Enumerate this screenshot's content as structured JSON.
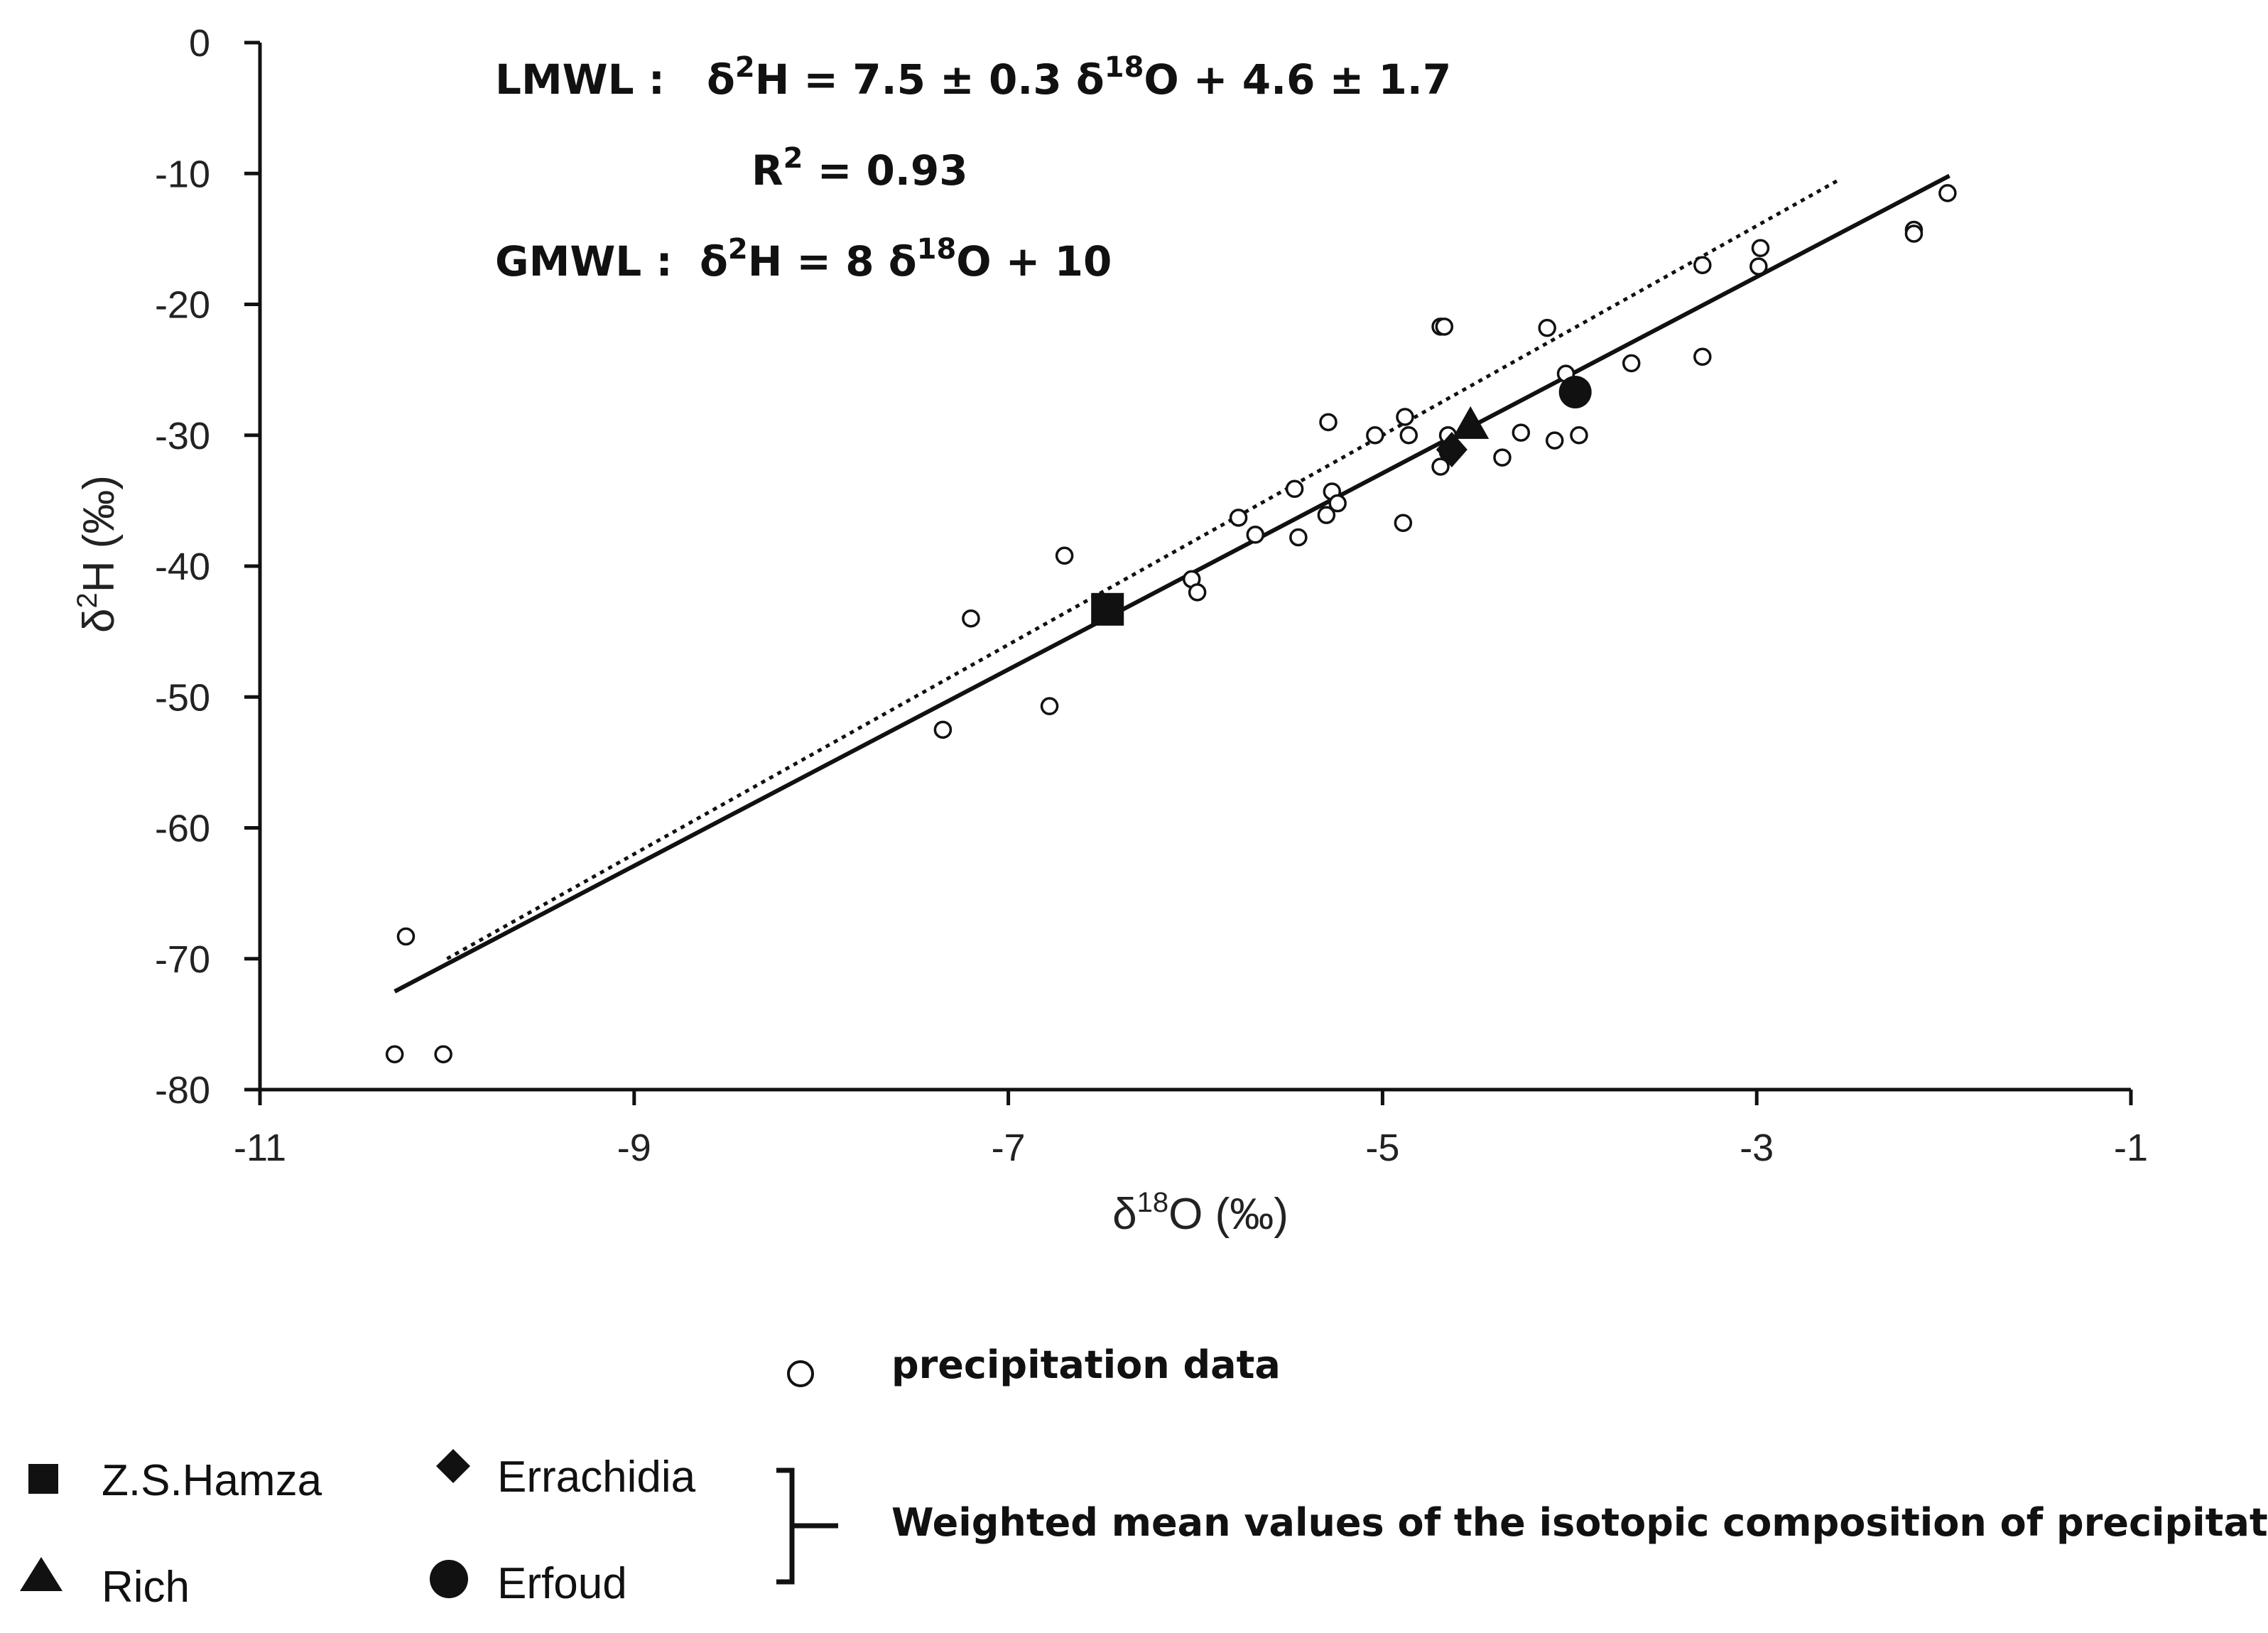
{
  "chart_data": {
    "type": "scatter",
    "x_axis": {
      "label_base": "δ",
      "label_sup": "18",
      "label_rest": "O (‰)",
      "range": [
        -11,
        -1
      ],
      "ticks": [
        -11,
        -9,
        -7,
        -5,
        -3,
        -1
      ]
    },
    "y_axis": {
      "label_base": "δ",
      "label_sup": "2",
      "label_rest": "H (‰)",
      "range": [
        -80,
        0
      ],
      "ticks": [
        0,
        -10,
        -20,
        -30,
        -40,
        -50,
        -60,
        -70,
        -80
      ]
    },
    "equations": {
      "lmwl": {
        "prefix": "LMWL :",
        "d": "δ",
        "sup1": "2",
        "mid1": "H  = 7.5 ± 0.3  δ",
        "sup2": "18",
        "mid2": "O + 4.6 ± 1.7"
      },
      "r2": {
        "prefix": "R",
        "sup": "2",
        "rest": " = 0.93"
      },
      "gmwl": {
        "prefix": "GMWL :",
        "d": "δ",
        "sup1": "2",
        "mid1": "H  = 8 δ",
        "sup2": "18",
        "mid2": "O + 10"
      }
    },
    "lines": [
      {
        "name": "LMWL",
        "style": "solid",
        "slope": 7.5,
        "intercept": 4.6,
        "x_range": [
          -10.28,
          -1.97
        ]
      },
      {
        "name": "GMWL",
        "style": "dotted",
        "slope": 8,
        "intercept": 10,
        "x_range": [
          -10.0,
          -2.55
        ]
      }
    ],
    "series": [
      {
        "name": "precipitation data",
        "marker": "open-circle",
        "points": [
          [
            -10.28,
            -77.3
          ],
          [
            -10.02,
            -77.3
          ],
          [
            -10.22,
            -68.3
          ],
          [
            -7.35,
            -52.5
          ],
          [
            -7.2,
            -44.0
          ],
          [
            -6.78,
            -50.7
          ],
          [
            -6.7,
            -39.2
          ],
          [
            -6.02,
            -41.0
          ],
          [
            -5.99,
            -42.0
          ],
          [
            -5.77,
            -36.3
          ],
          [
            -5.68,
            -37.6
          ],
          [
            -5.47,
            -34.1
          ],
          [
            -5.45,
            -37.8
          ],
          [
            -5.3,
            -36.1
          ],
          [
            -5.29,
            -29.0
          ],
          [
            -5.27,
            -34.3
          ],
          [
            -5.24,
            -35.2
          ],
          [
            -5.04,
            -30.0
          ],
          [
            -4.89,
            -36.7
          ],
          [
            -4.88,
            -28.6
          ],
          [
            -4.86,
            -30.0
          ],
          [
            -4.69,
            -21.7
          ],
          [
            -4.67,
            -21.7
          ],
          [
            -4.69,
            -32.4
          ],
          [
            -4.65,
            -30.0
          ],
          [
            -4.65,
            -31.3
          ],
          [
            -4.36,
            -31.7
          ],
          [
            -4.26,
            -29.8
          ],
          [
            -4.12,
            -21.8
          ],
          [
            -4.08,
            -30.4
          ],
          [
            -4.02,
            -25.3
          ],
          [
            -3.95,
            -30.0
          ],
          [
            -3.67,
            -24.5
          ],
          [
            -3.29,
            -17.0
          ],
          [
            -3.29,
            -24.0
          ],
          [
            -2.99,
            -17.1
          ],
          [
            -2.98,
            -15.7
          ],
          [
            -2.16,
            -14.3
          ],
          [
            -2.16,
            -14.6
          ],
          [
            -1.98,
            -11.5
          ]
        ]
      },
      {
        "name": "Z.S.Hamza",
        "marker": "square",
        "points": [
          [
            -6.47,
            -43.3
          ]
        ]
      },
      {
        "name": "Errachidia",
        "marker": "diamond",
        "points": [
          [
            -4.63,
            -31.1
          ]
        ]
      },
      {
        "name": "Rich",
        "marker": "triangle",
        "points": [
          [
            -4.53,
            -29.3
          ]
        ]
      },
      {
        "name": "Erfoud",
        "marker": "circle",
        "points": [
          [
            -3.97,
            -26.7
          ]
        ]
      }
    ],
    "legend": {
      "precipitation": "precipitation data",
      "stations": [
        "Z.S.Hamza",
        "Errachidia",
        "Rich",
        "Erfoud"
      ],
      "group_label": "Weighted mean values of the isotopic composition of precipitation"
    }
  }
}
